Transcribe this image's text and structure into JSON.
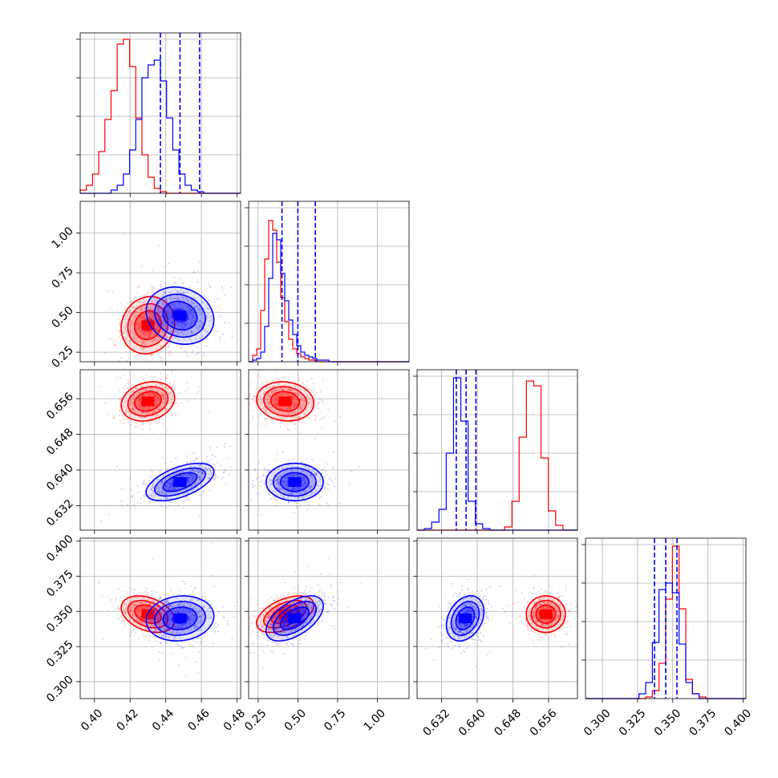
{
  "chart_data": {
    "type": "corner-plot",
    "title": "",
    "grid": true,
    "series": [
      {
        "color": "#ff0000"
      },
      {
        "color": "#0000ff"
      }
    ],
    "quantile_line_color": "#0000ff",
    "parameters": [
      {
        "range": [
          0.392,
          0.482
        ],
        "ticks": [
          "0.40",
          "0.42",
          "0.44",
          "0.46",
          "0.48"
        ],
        "red": {
          "mean": 0.43,
          "sd": 0.0075
        },
        "blue": {
          "mean": 0.448,
          "sd": 0.0095
        },
        "quantiles": [
          0.437,
          0.448,
          0.459
        ]
      },
      {
        "range": [
          0.19,
          1.2
        ],
        "ticks": [
          "0.25",
          "0.50",
          "0.75",
          "1.00"
        ],
        "red": {
          "mean": 0.42,
          "sd": 0.09
        },
        "blue": {
          "mean": 0.48,
          "sd": 0.09
        },
        "quantiles": [
          0.4,
          0.5,
          0.61
        ]
      },
      {
        "range": [
          0.6265,
          0.6625
        ],
        "ticks": [
          "0.632",
          "0.640",
          "0.648",
          "0.656"
        ],
        "red": {
          "mean": 0.6554,
          "sd": 0.0022
        },
        "blue": {
          "mean": 0.6373,
          "sd": 0.0021
        },
        "quantiles": [
          0.6353,
          0.6375,
          0.6397
        ]
      },
      {
        "range": [
          0.288,
          0.402
        ],
        "ticks": [
          "0.300",
          "0.325",
          "0.350",
          "0.375",
          "0.400"
        ],
        "red": {
          "mean": 0.348,
          "sd": 0.0065
        },
        "blue": {
          "mean": 0.345,
          "sd": 0.008
        },
        "quantiles": [
          0.337,
          0.345,
          0.353
        ]
      }
    ],
    "histograms": [
      {
        "param": 0,
        "bins": [
          0.392,
          0.482,
          26
        ],
        "red": [
          0.02,
          0.05,
          0.12,
          0.26,
          0.46,
          0.64,
          0.93,
          0.96,
          0.79,
          0.47,
          0.24,
          0.1,
          0.03,
          0.01,
          0,
          0,
          0,
          0,
          0,
          0,
          0,
          0,
          0,
          0,
          0,
          0
        ],
        "blue": [
          0,
          0,
          0,
          0,
          0,
          0.02,
          0.05,
          0.12,
          0.27,
          0.46,
          0.72,
          0.8,
          0.83,
          0.7,
          0.47,
          0.27,
          0.12,
          0.05,
          0.02,
          0.01,
          0,
          0,
          0,
          0,
          0,
          0
        ]
      },
      {
        "param": 1,
        "bins": [
          0.19,
          1.2,
          40
        ],
        "red": [
          0,
          0.04,
          0.08,
          0.32,
          0.64,
          0.88,
          0.82,
          0.62,
          0.4,
          0.25,
          0.14,
          0.08,
          0.05,
          0.03,
          0.02,
          0.01,
          0.01,
          0,
          0,
          0,
          0,
          0,
          0,
          0,
          0,
          0,
          0,
          0,
          0,
          0,
          0,
          0,
          0,
          0,
          0,
          0,
          0,
          0,
          0,
          0
        ],
        "blue": [
          0,
          0.01,
          0.02,
          0.06,
          0.22,
          0.52,
          0.8,
          0.76,
          0.55,
          0.38,
          0.26,
          0.17,
          0.1,
          0.06,
          0.04,
          0.03,
          0.02,
          0.01,
          0.01,
          0.01,
          0,
          0,
          0,
          0,
          0,
          0,
          0,
          0,
          0,
          0,
          0,
          0,
          0,
          0,
          0,
          0,
          0,
          0,
          0,
          0
        ]
      },
      {
        "param": 2,
        "bins": [
          0.6265,
          0.6625,
          22
        ],
        "red": [
          0,
          0,
          0,
          0,
          0,
          0,
          0,
          0,
          0,
          0,
          0,
          0,
          0.02,
          0.18,
          0.58,
          0.93,
          0.9,
          0.45,
          0.12,
          0.03,
          0,
          0
        ],
        "blue": [
          0,
          0.01,
          0.05,
          0.13,
          0.48,
          0.95,
          0.68,
          0.18,
          0.04,
          0.01,
          0,
          0,
          0,
          0,
          0,
          0,
          0,
          0,
          0,
          0,
          0,
          0
        ]
      },
      {
        "param": 3,
        "bins": [
          0.288,
          0.402,
          24
        ],
        "red": [
          0,
          0,
          0,
          0,
          0,
          0,
          0,
          0,
          0,
          0.01,
          0.05,
          0.22,
          0.62,
          0.95,
          0.56,
          0.12,
          0.03,
          0.01,
          0,
          0,
          0,
          0,
          0,
          0
        ],
        "blue": [
          0,
          0,
          0,
          0,
          0,
          0,
          0,
          0,
          0.03,
          0.1,
          0.35,
          0.68,
          0.72,
          0.66,
          0.34,
          0.1,
          0.03,
          0,
          0,
          0,
          0,
          0,
          0,
          0
        ]
      }
    ],
    "scatter_panels": [
      {
        "x": 0,
        "y": 1,
        "red": {
          "corr": 0.1
        },
        "blue": {
          "corr": -0.15
        }
      },
      {
        "x": 0,
        "y": 2,
        "red": {
          "corr": 0.2
        },
        "blue": {
          "corr": 0.55
        }
      },
      {
        "x": 1,
        "y": 2,
        "red": {
          "corr": -0.1
        },
        "blue": {
          "corr": 0.0
        }
      },
      {
        "x": 0,
        "y": 3,
        "red": {
          "corr": -0.35
        },
        "blue": {
          "corr": 0.1
        }
      },
      {
        "x": 1,
        "y": 3,
        "red": {
          "corr": 0.5
        },
        "blue": {
          "corr": 0.55
        }
      },
      {
        "x": 2,
        "y": 3,
        "red": {
          "corr": 0.0
        },
        "blue": {
          "corr": 0.3
        }
      }
    ]
  }
}
